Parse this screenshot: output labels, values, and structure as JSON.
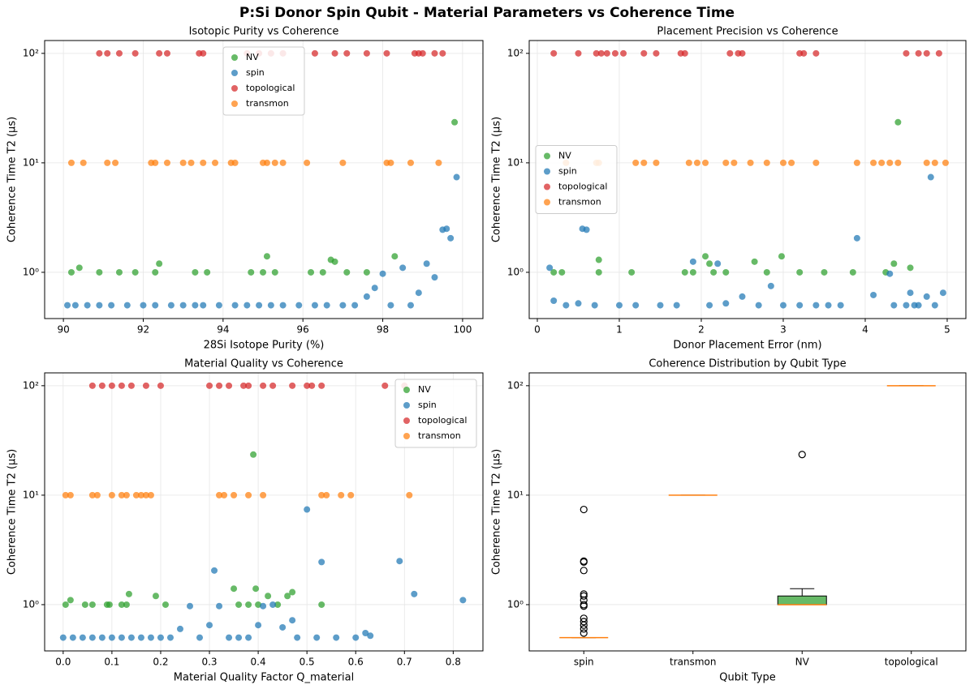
{
  "title": "P:Si Donor Spin Qubit - Material Parameters vs Coherence Time",
  "chart_data": [
    {
      "type": "scatter",
      "title": "Isotopic Purity vs Coherence",
      "x_label": "28Si Isotope Purity (%)",
      "y_label": "Coherence Time T2 (μs)",
      "xlim": [
        89.53,
        100.51
      ],
      "xticks": [
        90,
        92,
        94,
        96,
        98,
        100
      ],
      "ylim": [
        0.378,
        131
      ],
      "yscale": "log",
      "yticks": [
        {
          "value": 1,
          "label": "10⁰"
        },
        {
          "value": 10,
          "label": "10¹"
        },
        {
          "value": 100,
          "label": "10²"
        }
      ],
      "grid": true,
      "legend": "upper center",
      "series": [
        {
          "name": "NV",
          "color": "#2ca02c",
          "x": [
            90.2,
            90.4,
            90.9,
            91.4,
            91.8,
            92.3,
            92.4,
            93.3,
            93.6,
            94.7,
            95.0,
            95.1,
            95.3,
            96.2,
            96.5,
            96.7,
            96.8,
            97.1,
            97.6,
            98.3,
            99.8
          ],
          "values": [
            1,
            1.1,
            1,
            1,
            1,
            1,
            1.2,
            1,
            1,
            1,
            1,
            1.4,
            1,
            1,
            1,
            1.3,
            1.25,
            1,
            1,
            1.4,
            23.5
          ]
        },
        {
          "name": "spin",
          "color": "#1f77b4",
          "x": [
            90.1,
            90.3,
            90.6,
            90.9,
            91.2,
            91.6,
            92.0,
            92.3,
            92.7,
            93.0,
            93.3,
            93.5,
            93.9,
            94.3,
            94.6,
            94.9,
            95.2,
            95.5,
            95.9,
            96.3,
            96.6,
            97.0,
            97.3,
            97.6,
            97.8,
            98.0,
            98.2,
            98.5,
            98.7,
            98.9,
            99.1,
            99.3,
            99.5,
            99.6,
            99.7,
            99.85
          ],
          "values": [
            0.5,
            0.5,
            0.5,
            0.5,
            0.5,
            0.5,
            0.5,
            0.5,
            0.5,
            0.5,
            0.5,
            0.5,
            0.5,
            0.5,
            0.5,
            0.5,
            0.5,
            0.5,
            0.5,
            0.5,
            0.5,
            0.5,
            0.5,
            0.6,
            0.72,
            0.97,
            0.5,
            1.1,
            0.5,
            0.65,
            1.2,
            0.9,
            2.45,
            2.5,
            2.05,
            7.4
          ]
        },
        {
          "name": "topological",
          "color": "#d62728",
          "x": [
            90.9,
            91.1,
            91.4,
            91.8,
            92.4,
            92.6,
            93.4,
            93.5,
            94.6,
            94.9,
            95.2,
            95.5,
            96.3,
            96.8,
            97.1,
            97.6,
            98.1,
            98.8,
            98.9,
            99.0,
            99.3,
            99.5
          ],
          "values": [
            100,
            100,
            100,
            100,
            100,
            100,
            100,
            100,
            100,
            100,
            100,
            100,
            100,
            100,
            100,
            100,
            100,
            100,
            100,
            100,
            100,
            100
          ]
        },
        {
          "name": "transmon",
          "color": "#ff7f0e",
          "x": [
            90.2,
            90.5,
            91.1,
            91.3,
            92.2,
            92.3,
            92.6,
            93.0,
            93.2,
            93.5,
            93.8,
            94.2,
            94.3,
            95.0,
            95.1,
            95.3,
            95.5,
            96.1,
            97.0,
            98.1,
            98.2,
            98.7,
            99.4
          ],
          "values": [
            10,
            10,
            10,
            10,
            10,
            10,
            10,
            10,
            10,
            10,
            10,
            10,
            10,
            10,
            10,
            10,
            10,
            10,
            10,
            10,
            10,
            10,
            10
          ]
        }
      ]
    },
    {
      "type": "scatter",
      "title": "Placement Precision vs Coherence",
      "x_label": "Donor Placement Error (nm)",
      "y_label": "Coherence Time T2 (μs)",
      "xlim": [
        -0.099,
        5.228
      ],
      "xticks": [
        0,
        1,
        2,
        3,
        4,
        5
      ],
      "ylim": [
        0.378,
        131
      ],
      "yscale": "log",
      "yticks": [
        {
          "value": 1,
          "label": "10⁰"
        },
        {
          "value": 10,
          "label": "10¹"
        },
        {
          "value": 100,
          "label": "10²"
        }
      ],
      "grid": true,
      "legend": "center left",
      "series": [
        {
          "name": "NV",
          "color": "#2ca02c",
          "x": [
            0.2,
            0.3,
            0.75,
            0.75,
            1.15,
            1.8,
            1.9,
            2.05,
            2.1,
            2.15,
            2.3,
            2.65,
            2.8,
            2.98,
            3.2,
            3.5,
            3.85,
            4.25,
            4.35,
            4.4,
            4.55
          ],
          "values": [
            1,
            1,
            1.3,
            1,
            1,
            1,
            1,
            1.4,
            1.2,
            1,
            1,
            1.25,
            1,
            1.4,
            1,
            1,
            1,
            1,
            1.2,
            23.5,
            1.1
          ]
        },
        {
          "name": "spin",
          "color": "#1f77b4",
          "x": [
            0.15,
            0.2,
            0.35,
            0.5,
            0.55,
            0.6,
            0.7,
            1.0,
            1.2,
            1.5,
            1.7,
            1.9,
            2.1,
            2.2,
            2.3,
            2.5,
            2.7,
            2.85,
            3.0,
            3.2,
            3.4,
            3.55,
            3.7,
            3.9,
            4.1,
            4.3,
            4.35,
            4.5,
            4.55,
            4.6,
            4.65,
            4.75,
            4.8,
            4.85,
            4.95
          ],
          "values": [
            1.1,
            0.55,
            0.5,
            0.52,
            2.5,
            2.45,
            0.5,
            0.5,
            0.5,
            0.5,
            0.5,
            1.25,
            0.5,
            1.2,
            0.52,
            0.6,
            0.5,
            0.75,
            0.5,
            0.5,
            0.5,
            0.5,
            0.5,
            2.05,
            0.62,
            0.97,
            0.5,
            0.5,
            0.65,
            0.5,
            0.5,
            0.6,
            7.4,
            0.5,
            0.65
          ]
        },
        {
          "name": "topological",
          "color": "#d62728",
          "x": [
            0.2,
            0.5,
            0.72,
            0.78,
            0.85,
            0.95,
            1.05,
            1.3,
            1.45,
            1.75,
            1.8,
            2.35,
            2.45,
            2.5,
            3.2,
            3.25,
            3.4,
            4.5,
            4.65,
            4.75,
            4.9
          ],
          "values": [
            100,
            100,
            100,
            100,
            100,
            100,
            100,
            100,
            100,
            100,
            100,
            100,
            100,
            100,
            100,
            100,
            100,
            100,
            100,
            100,
            100
          ]
        },
        {
          "name": "transmon",
          "color": "#ff7f0e",
          "x": [
            0.35,
            0.72,
            0.75,
            1.2,
            1.3,
            1.45,
            1.85,
            1.95,
            2.05,
            2.3,
            2.4,
            2.6,
            2.8,
            3.0,
            3.1,
            3.4,
            3.9,
            4.1,
            4.2,
            4.3,
            4.4,
            4.75,
            4.85,
            4.98
          ],
          "values": [
            10,
            10,
            10,
            10,
            10,
            10,
            10,
            10,
            10,
            10,
            10,
            10,
            10,
            10,
            10,
            10,
            10,
            10,
            10,
            10,
            10,
            10,
            10,
            10
          ]
        }
      ]
    },
    {
      "type": "scatter",
      "title": "Material Quality vs Coherence",
      "x_label": "Material Quality Factor Q_material",
      "y_label": "Coherence Time T2 (μs)",
      "xlim": [
        -0.038,
        0.861
      ],
      "xticks": [
        {
          "value": 0,
          "label": "0.0"
        },
        0.1,
        0.2,
        0.3,
        0.4,
        0.5,
        0.6,
        0.7,
        0.8
      ],
      "ylim": [
        0.378,
        131
      ],
      "yscale": "log",
      "yticks": [
        {
          "value": 1,
          "label": "10⁰"
        },
        {
          "value": 10,
          "label": "10¹"
        },
        {
          "value": 100,
          "label": "10²"
        }
      ],
      "grid": true,
      "legend": "upper right",
      "series": [
        {
          "name": "NV",
          "color": "#2ca02c",
          "x": [
            0.005,
            0.015,
            0.045,
            0.06,
            0.09,
            0.095,
            0.12,
            0.13,
            0.135,
            0.19,
            0.21,
            0.35,
            0.36,
            0.38,
            0.39,
            0.395,
            0.4,
            0.42,
            0.44,
            0.46,
            0.47,
            0.53
          ],
          "values": [
            1,
            1.1,
            1,
            1,
            1,
            1,
            1,
            1,
            1.25,
            1.2,
            1,
            1.4,
            1,
            1,
            23.5,
            1.4,
            1,
            1.2,
            1,
            1.2,
            1.3,
            1
          ]
        },
        {
          "name": "spin",
          "color": "#1f77b4",
          "x": [
            0.0,
            0.02,
            0.04,
            0.06,
            0.08,
            0.1,
            0.12,
            0.14,
            0.16,
            0.18,
            0.2,
            0.22,
            0.24,
            0.26,
            0.28,
            0.3,
            0.31,
            0.32,
            0.34,
            0.36,
            0.38,
            0.4,
            0.41,
            0.43,
            0.45,
            0.47,
            0.48,
            0.5,
            0.52,
            0.53,
            0.56,
            0.6,
            0.62,
            0.63,
            0.69,
            0.72,
            0.82
          ],
          "values": [
            0.5,
            0.5,
            0.5,
            0.5,
            0.5,
            0.5,
            0.5,
            0.5,
            0.5,
            0.5,
            0.5,
            0.5,
            0.6,
            0.97,
            0.5,
            0.65,
            2.05,
            0.97,
            0.5,
            0.5,
            0.5,
            0.65,
            0.97,
            1.0,
            0.62,
            0.72,
            0.5,
            7.4,
            0.5,
            2.45,
            0.5,
            0.5,
            0.55,
            0.52,
            2.5,
            1.25,
            1.1
          ]
        },
        {
          "name": "topological",
          "color": "#d62728",
          "x": [
            0.06,
            0.08,
            0.1,
            0.12,
            0.14,
            0.17,
            0.2,
            0.3,
            0.32,
            0.34,
            0.37,
            0.38,
            0.41,
            0.43,
            0.47,
            0.5,
            0.51,
            0.53,
            0.66,
            0.7
          ],
          "values": [
            100,
            100,
            100,
            100,
            100,
            100,
            100,
            100,
            100,
            100,
            100,
            100,
            100,
            100,
            100,
            100,
            100,
            100,
            100,
            100
          ]
        },
        {
          "name": "transmon",
          "color": "#ff7f0e",
          "x": [
            0.005,
            0.015,
            0.06,
            0.07,
            0.1,
            0.12,
            0.13,
            0.15,
            0.16,
            0.17,
            0.18,
            0.32,
            0.33,
            0.35,
            0.38,
            0.41,
            0.53,
            0.54,
            0.57,
            0.59,
            0.71
          ],
          "values": [
            10,
            10,
            10,
            10,
            10,
            10,
            10,
            10,
            10,
            10,
            10,
            10,
            10,
            10,
            10,
            10,
            10,
            10,
            10,
            10,
            10
          ]
        }
      ]
    },
    {
      "type": "box",
      "title": "Coherence Distribution by Qubit Type",
      "x_label": "Qubit Type",
      "y_label": "Coherence Time T2 (μs)",
      "ylim": [
        0.378,
        131
      ],
      "yscale": "log",
      "yticks": [
        {
          "value": 1,
          "label": "10⁰"
        },
        {
          "value": 10,
          "label": "10¹"
        },
        {
          "value": 100,
          "label": "10²"
        }
      ],
      "grid": true,
      "median_color": "#ff7f0e",
      "categories": [
        "spin",
        "transmon",
        "NV",
        "topological"
      ],
      "boxes": [
        {
          "color": "#1f77b4",
          "whislo": 0.5,
          "q1": 0.5,
          "med": 0.5,
          "q3": 0.5,
          "whishi": 0.5,
          "fliers": [
            7.4,
            2.5,
            2.45,
            2.05,
            1.25,
            1.2,
            1.1,
            1.0,
            0.97,
            0.75,
            0.7,
            0.65,
            0.6,
            0.55
          ]
        },
        {
          "color": "#ff7f0e",
          "whislo": 10,
          "q1": 10,
          "med": 10,
          "q3": 10,
          "whishi": 10,
          "fliers": []
        },
        {
          "color": "#2ca02c",
          "whislo": 1,
          "q1": 1,
          "med": 1,
          "q3": 1.2,
          "whishi": 1.4,
          "fliers": [
            23.5
          ]
        },
        {
          "color": "#d62728",
          "whislo": 100,
          "q1": 100,
          "med": 100,
          "q3": 100,
          "whishi": 100,
          "fliers": []
        }
      ]
    }
  ]
}
